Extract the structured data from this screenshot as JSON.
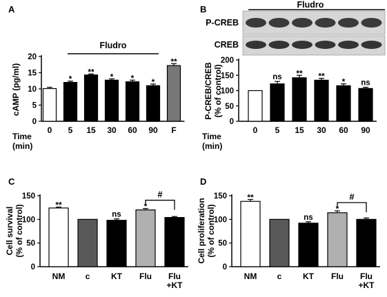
{
  "chart_data": [
    {
      "panel": "A",
      "type": "bar",
      "group_label": "Fludro",
      "ylabel": "cAMP (pg/ml)",
      "xlabel": "Time (min)",
      "x_axis_title_lines": [
        "Time",
        "(min)"
      ],
      "categories": [
        "0",
        "5",
        "15",
        "30",
        "60",
        "90",
        "F"
      ],
      "values": [
        10.1,
        12.0,
        14.3,
        12.7,
        12.2,
        11.0,
        17.2
      ],
      "errors": [
        0.4,
        0.4,
        0.3,
        0.4,
        0.5,
        0.5,
        0.6
      ],
      "fills": [
        "#ffffff",
        "#000000",
        "#000000",
        "#000000",
        "#000000",
        "#000000",
        "#777777"
      ],
      "significance": [
        "",
        "*",
        "**",
        "*",
        "*",
        "*",
        "**"
      ],
      "yticks": [
        0,
        5,
        10,
        15,
        20
      ],
      "ylim": [
        0,
        20
      ]
    },
    {
      "panel": "B",
      "type": "bar",
      "group_label": "Fludro",
      "ylabel": "P-CREB/CREB (% of control)",
      "ylabel_lines": [
        "P-CREB/CREB",
        "(% of control)"
      ],
      "xlabel": "Time (min)",
      "x_axis_title_lines": [
        "Time",
        "(min)"
      ],
      "blot_labels": [
        "P-CREB",
        "CREB"
      ],
      "categories": [
        "0",
        "5",
        "15",
        "30",
        "60",
        "90"
      ],
      "values": [
        100,
        122,
        142,
        134,
        116,
        107
      ],
      "errors": [
        0,
        8,
        8,
        6,
        6,
        4
      ],
      "fills": [
        "#ffffff",
        "#000000",
        "#000000",
        "#000000",
        "#000000",
        "#000000"
      ],
      "significance": [
        "",
        "ns",
        "**",
        "**",
        "*",
        "ns"
      ],
      "yticks": [
        0,
        50,
        100,
        150,
        200
      ],
      "ylim": [
        0,
        200
      ]
    },
    {
      "panel": "C",
      "type": "bar",
      "ylabel": "Cell survival (% of control)",
      "ylabel_lines": [
        "Cell survival",
        "(% of control)"
      ],
      "categories": [
        "NM",
        "c",
        "KT",
        "Flu",
        "Flu +KT"
      ],
      "category_lines": [
        [
          "NM"
        ],
        [
          "c"
        ],
        [
          "KT"
        ],
        [
          "Flu"
        ],
        [
          "Flu",
          "+KT"
        ]
      ],
      "values": [
        124,
        100,
        98,
        120,
        104
      ],
      "errors": [
        2,
        0,
        3,
        3,
        2
      ],
      "fills": [
        "#ffffff",
        "#595959",
        "#000000",
        "#b0b0b0",
        "#000000"
      ],
      "significance": [
        "**",
        "",
        "ns",
        "*",
        ""
      ],
      "bracket_label": "#",
      "yticks": [
        0,
        50,
        100,
        150
      ],
      "ylim": [
        0,
        150
      ]
    },
    {
      "panel": "D",
      "type": "bar",
      "ylabel": "Cell proliferation (% of control)",
      "ylabel_lines": [
        "Cell proliferation",
        "(% of control)"
      ],
      "categories": [
        "NM",
        "c",
        "KT",
        "Flu",
        "Flu +KT"
      ],
      "category_lines": [
        [
          "NM"
        ],
        [
          "c"
        ],
        [
          "KT"
        ],
        [
          "Flu"
        ],
        [
          "Flu",
          "+KT"
        ]
      ],
      "values": [
        138,
        100,
        92,
        114,
        100
      ],
      "errors": [
        4,
        0,
        3,
        4,
        3
      ],
      "fills": [
        "#ffffff",
        "#595959",
        "#000000",
        "#b0b0b0",
        "#000000"
      ],
      "significance": [
        "**",
        "",
        "ns",
        "*",
        ""
      ],
      "bracket_label": "#",
      "yticks": [
        0,
        50,
        100,
        150
      ],
      "ylim": [
        0,
        150
      ]
    }
  ],
  "panel_letters": [
    "A",
    "B",
    "C",
    "D"
  ],
  "blot": {
    "band_color": "#1e1e1e",
    "lanes": 6
  }
}
